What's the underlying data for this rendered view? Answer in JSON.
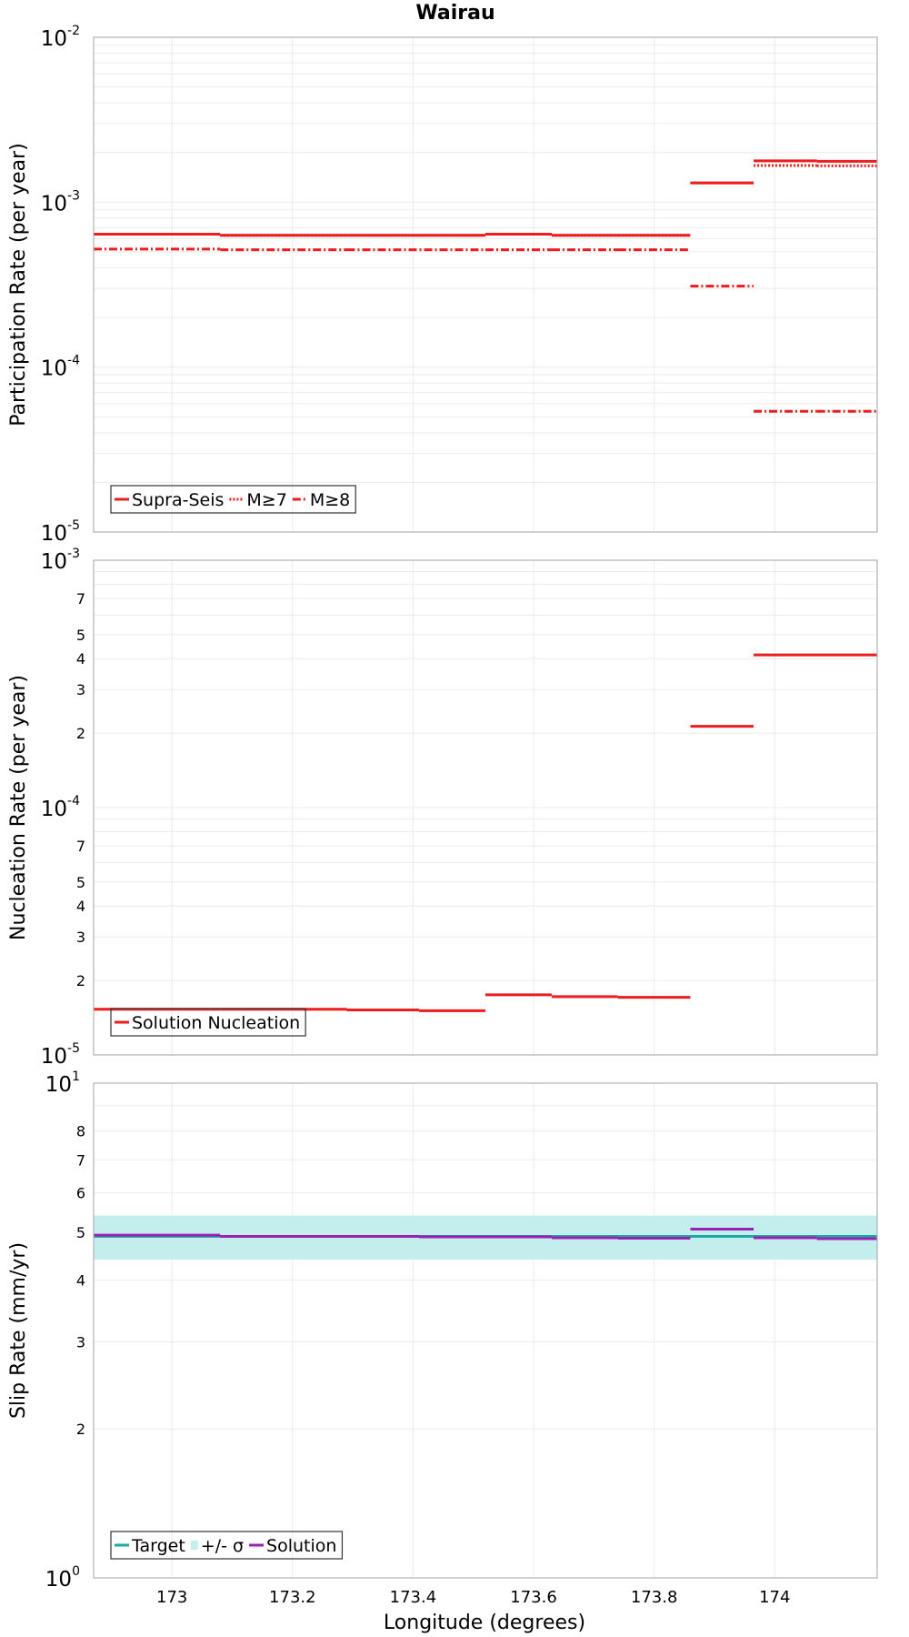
{
  "title": "Wairau",
  "x_axis": {
    "label": "Longitude (degrees)",
    "lim": [
      172.87,
      174.17
    ],
    "ticks": [
      173,
      173.2,
      173.4,
      173.6,
      173.8,
      174
    ],
    "tick_labels": [
      "173",
      "173.2",
      "173.4",
      "173.6",
      "173.8",
      "174"
    ]
  },
  "colors": {
    "red": "#ee1c1c",
    "target": "#1aaaa0",
    "band": "#c4eeee",
    "solution": "#9c1fb5",
    "grid": "#ebebeb",
    "frame": "#b0b0b0"
  },
  "chart_data": [
    {
      "type": "line",
      "ylabel": "Participation Rate (per year)",
      "yscale": "log",
      "ylim": [
        1e-05,
        0.01
      ],
      "major_ticks": [
        {
          "v": 0.01,
          "b": "10",
          "e": "-2"
        },
        {
          "v": 0.001,
          "b": "10",
          "e": "-3"
        },
        {
          "v": 0.0001,
          "b": "10",
          "e": "-4"
        },
        {
          "v": 1e-05,
          "b": "10",
          "e": "-5"
        }
      ],
      "minor_labels": [],
      "legend": {
        "position": "bottom-left",
        "entries": [
          {
            "label": "Supra-Seis",
            "style": "solid"
          },
          {
            "label": "M≥7",
            "style": "dotted"
          },
          {
            "label": "M≥8",
            "style": "dashdot"
          }
        ]
      },
      "series": [
        {
          "name": "Supra-Seis",
          "style": "solid",
          "color": "red",
          "segments": [
            {
              "x": [
                172.87,
                173.08
              ],
              "y": 0.00064
            },
            {
              "x": [
                173.08,
                173.29
              ],
              "y": 0.00063
            },
            {
              "x": [
                173.29,
                173.52
              ],
              "y": 0.00063
            },
            {
              "x": [
                173.52,
                173.63
              ],
              "y": 0.00064
            },
            {
              "x": [
                173.63,
                173.74
              ],
              "y": 0.00063
            },
            {
              "x": [
                173.74,
                173.86
              ],
              "y": 0.00063
            },
            {
              "x": [
                173.86,
                173.965
              ],
              "y": 0.00131
            },
            {
              "x": [
                173.965,
                174.07
              ],
              "y": 0.00178
            },
            {
              "x": [
                174.07,
                174.17
              ],
              "y": 0.00177
            }
          ]
        },
        {
          "name": "M≥7",
          "style": "dotted",
          "color": "red",
          "segments": [
            {
              "x": [
                172.87,
                173.08
              ],
              "y": 0.00064
            },
            {
              "x": [
                173.08,
                173.29
              ],
              "y": 0.00063
            },
            {
              "x": [
                173.29,
                173.52
              ],
              "y": 0.00063
            },
            {
              "x": [
                173.52,
                173.63
              ],
              "y": 0.00064
            },
            {
              "x": [
                173.63,
                173.74
              ],
              "y": 0.00063
            },
            {
              "x": [
                173.74,
                173.86
              ],
              "y": 0.00063
            },
            {
              "x": [
                173.86,
                173.965
              ],
              "y": 0.00131
            },
            {
              "x": [
                173.965,
                174.07
              ],
              "y": 0.00167
            },
            {
              "x": [
                174.07,
                174.17
              ],
              "y": 0.00166
            }
          ]
        },
        {
          "name": "M≥8",
          "style": "dashdot",
          "color": "red",
          "segments": [
            {
              "x": [
                172.87,
                173.08
              ],
              "y": 0.00052
            },
            {
              "x": [
                173.08,
                173.29
              ],
              "y": 0.000515
            },
            {
              "x": [
                173.29,
                173.52
              ],
              "y": 0.000515
            },
            {
              "x": [
                173.52,
                173.63
              ],
              "y": 0.000515
            },
            {
              "x": [
                173.63,
                173.74
              ],
              "y": 0.000515
            },
            {
              "x": [
                173.74,
                173.86
              ],
              "y": 0.000515
            },
            {
              "x": [
                173.86,
                173.965
              ],
              "y": 0.00031
            },
            {
              "x": [
                173.965,
                174.07
              ],
              "y": 5.4e-05
            },
            {
              "x": [
                174.07,
                174.17
              ],
              "y": 5.4e-05
            }
          ]
        }
      ]
    },
    {
      "type": "line",
      "ylabel": "Nucleation Rate (per year)",
      "yscale": "log",
      "ylim": [
        1e-05,
        0.001
      ],
      "major_ticks": [
        {
          "v": 0.001,
          "b": "10",
          "e": "-3"
        },
        {
          "v": 0.0001,
          "b": "10",
          "e": "-4"
        },
        {
          "v": 1e-05,
          "b": "10",
          "e": "-5"
        }
      ],
      "minor_labels": [
        {
          "v": 0.0007,
          "t": "7"
        },
        {
          "v": 0.0005,
          "t": "5"
        },
        {
          "v": 0.0004,
          "t": "4"
        },
        {
          "v": 0.0003,
          "t": "3"
        },
        {
          "v": 0.0002,
          "t": "2"
        },
        {
          "v": 7e-05,
          "t": "7"
        },
        {
          "v": 5e-05,
          "t": "5"
        },
        {
          "v": 4e-05,
          "t": "4"
        },
        {
          "v": 3e-05,
          "t": "3"
        },
        {
          "v": 2e-05,
          "t": "2"
        }
      ],
      "legend": {
        "position": "bottom-left",
        "entries": [
          {
            "label": "Solution Nucleation",
            "style": "solid"
          }
        ]
      },
      "series": [
        {
          "name": "Solution Nucleation",
          "style": "solid",
          "color": "red",
          "segments": [
            {
              "x": [
                172.87,
                173.08
              ],
              "y": 1.53e-05
            },
            {
              "x": [
                173.08,
                173.29
              ],
              "y": 1.53e-05
            },
            {
              "x": [
                173.29,
                173.41
              ],
              "y": 1.52e-05
            },
            {
              "x": [
                173.41,
                173.52
              ],
              "y": 1.51e-05
            },
            {
              "x": [
                173.52,
                173.63
              ],
              "y": 1.75e-05
            },
            {
              "x": [
                173.63,
                173.74
              ],
              "y": 1.72e-05
            },
            {
              "x": [
                173.74,
                173.86
              ],
              "y": 1.71e-05
            },
            {
              "x": [
                173.86,
                173.965
              ],
              "y": 0.000213
            },
            {
              "x": [
                173.965,
                174.17
              ],
              "y": 0.000414
            }
          ]
        }
      ]
    },
    {
      "type": "line",
      "ylabel": "Slip Rate (mm/yr)",
      "xlabel": "Longitude (degrees)",
      "yscale": "log",
      "ylim": [
        1,
        10
      ],
      "major_ticks": [
        {
          "v": 10,
          "b": "10",
          "e": "1"
        },
        {
          "v": 1,
          "b": "10",
          "e": "0"
        }
      ],
      "minor_labels": [
        {
          "v": 8,
          "t": "8"
        },
        {
          "v": 7,
          "t": "7"
        },
        {
          "v": 6,
          "t": "6"
        },
        {
          "v": 5,
          "t": "5"
        },
        {
          "v": 4,
          "t": "4"
        },
        {
          "v": 3,
          "t": "3"
        },
        {
          "v": 2,
          "t": "2"
        }
      ],
      "band": {
        "name": "+/- σ",
        "x": [
          172.87,
          174.17
        ],
        "y": [
          4.4,
          5.4
        ]
      },
      "legend": {
        "position": "bottom-left",
        "entries": [
          {
            "label": "Target",
            "style": "solid",
            "color": "target"
          },
          {
            "label": "+/- σ",
            "style": "band",
            "color": "band"
          },
          {
            "label": "Solution",
            "style": "solid",
            "color": "solution"
          }
        ]
      },
      "series": [
        {
          "name": "Target",
          "style": "solid",
          "color": "target",
          "segments": [
            {
              "x": [
                172.87,
                174.17
              ],
              "y": 4.9
            }
          ]
        },
        {
          "name": "Solution",
          "style": "solid",
          "color": "solution",
          "segments": [
            {
              "x": [
                172.87,
                173.08
              ],
              "y": 4.93
            },
            {
              "x": [
                173.08,
                173.29
              ],
              "y": 4.9
            },
            {
              "x": [
                173.29,
                173.41
              ],
              "y": 4.9
            },
            {
              "x": [
                173.41,
                173.52
              ],
              "y": 4.89
            },
            {
              "x": [
                173.52,
                173.63
              ],
              "y": 4.89
            },
            {
              "x": [
                173.63,
                173.74
              ],
              "y": 4.87
            },
            {
              "x": [
                173.74,
                173.86
              ],
              "y": 4.86
            },
            {
              "x": [
                173.86,
                173.965
              ],
              "y": 5.07
            },
            {
              "x": [
                173.965,
                174.07
              ],
              "y": 4.87
            },
            {
              "x": [
                174.07,
                174.17
              ],
              "y": 4.85
            }
          ]
        }
      ]
    }
  ]
}
